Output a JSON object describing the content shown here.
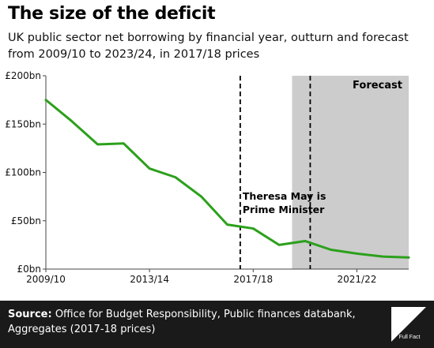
{
  "title": "The size of the deficit",
  "subtitle": "UK public sector net borrowing by financial year, outturn and forecast from 2009/10 to 2023/24, in 2017/18 prices",
  "chart_data": {
    "type": "line",
    "x": [
      "2009/10",
      "2010/11",
      "2011/12",
      "2012/13",
      "2013/14",
      "2014/15",
      "2015/16",
      "2016/17",
      "2017/18",
      "2018/19",
      "2019/20",
      "2020/21",
      "2021/22",
      "2022/23",
      "2023/24"
    ],
    "series": [
      {
        "values": [
          175,
          153,
          129,
          130,
          104,
          95,
          75,
          46,
          42,
          25,
          29,
          20,
          16,
          13,
          12
        ]
      }
    ],
    "x_tick_labels": [
      "2009/10",
      "2013/14",
      "2017/18",
      "2021/22"
    ],
    "y_tick_labels": [
      "£0bn",
      "£50bn",
      "£100bn",
      "£150bn",
      "£200bn"
    ],
    "ylim": [
      0,
      200
    ],
    "y_ticks": [
      0,
      50,
      100,
      150,
      200
    ],
    "grid": false,
    "series_color": "#2ca01c",
    "forecast_shading_color": "#cccccc",
    "forecast_start_year": 2018.5,
    "forecast_label": "Forecast",
    "annotations": [
      {
        "label": "Theresa May is Prime Minister",
        "line_one": "Theresa May is",
        "line_two": "Prime Minister",
        "start_year": 2016.5,
        "end_year": 2019.2
      }
    ]
  },
  "footer": {
    "source_label": "Source:",
    "source_text": "Office for Budget Responsibility, Public finances databank, Aggregates (2017-18 prices)",
    "logo_text": "Full Fact",
    "background": "#1a1a1a"
  }
}
